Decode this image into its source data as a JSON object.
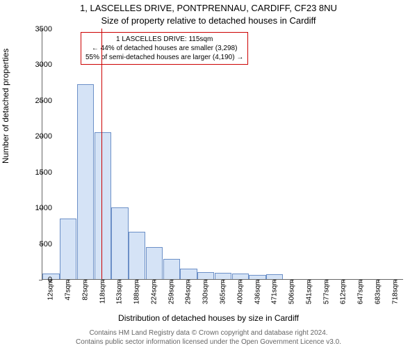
{
  "title_main": "1, LASCELLES DRIVE, PONTPRENNAU, CARDIFF, CF23 8NU",
  "title_sub": "Size of property relative to detached houses in Cardiff",
  "ylabel": "Number of detached properties",
  "xlabel": "Distribution of detached houses by size in Cardiff",
  "footer1": "Contains HM Land Registry data © Crown copyright and database right 2024.",
  "footer2": "Contains public sector information licensed under the Open Government Licence v3.0.",
  "chart": {
    "type": "histogram",
    "background_color": "#ffffff",
    "axis_color": "#666666",
    "bar_fill": "#d5e3f6",
    "bar_stroke": "#6b8fc7",
    "marker_color": "#cc0000",
    "ylim": [
      0,
      3500
    ],
    "ytick_step": 500,
    "categories": [
      "12sqm",
      "47sqm",
      "82sqm",
      "118sqm",
      "153sqm",
      "188sqm",
      "224sqm",
      "259sqm",
      "294sqm",
      "330sqm",
      "365sqm",
      "400sqm",
      "436sqm",
      "471sqm",
      "506sqm",
      "541sqm",
      "577sqm",
      "612sqm",
      "647sqm",
      "683sqm",
      "718sqm"
    ],
    "values": [
      80,
      850,
      2720,
      2050,
      1000,
      660,
      450,
      280,
      150,
      100,
      90,
      80,
      60,
      70,
      0,
      0,
      0,
      0,
      0,
      0,
      0
    ],
    "marker_value_sqm": 115,
    "annotation": {
      "line1": "1 LASCELLES DRIVE: 115sqm",
      "line2": "← 44% of detached houses are smaller (3,298)",
      "line3": "55% of semi-detached houses are larger (4,190) →",
      "border_color": "#cc0000"
    }
  }
}
